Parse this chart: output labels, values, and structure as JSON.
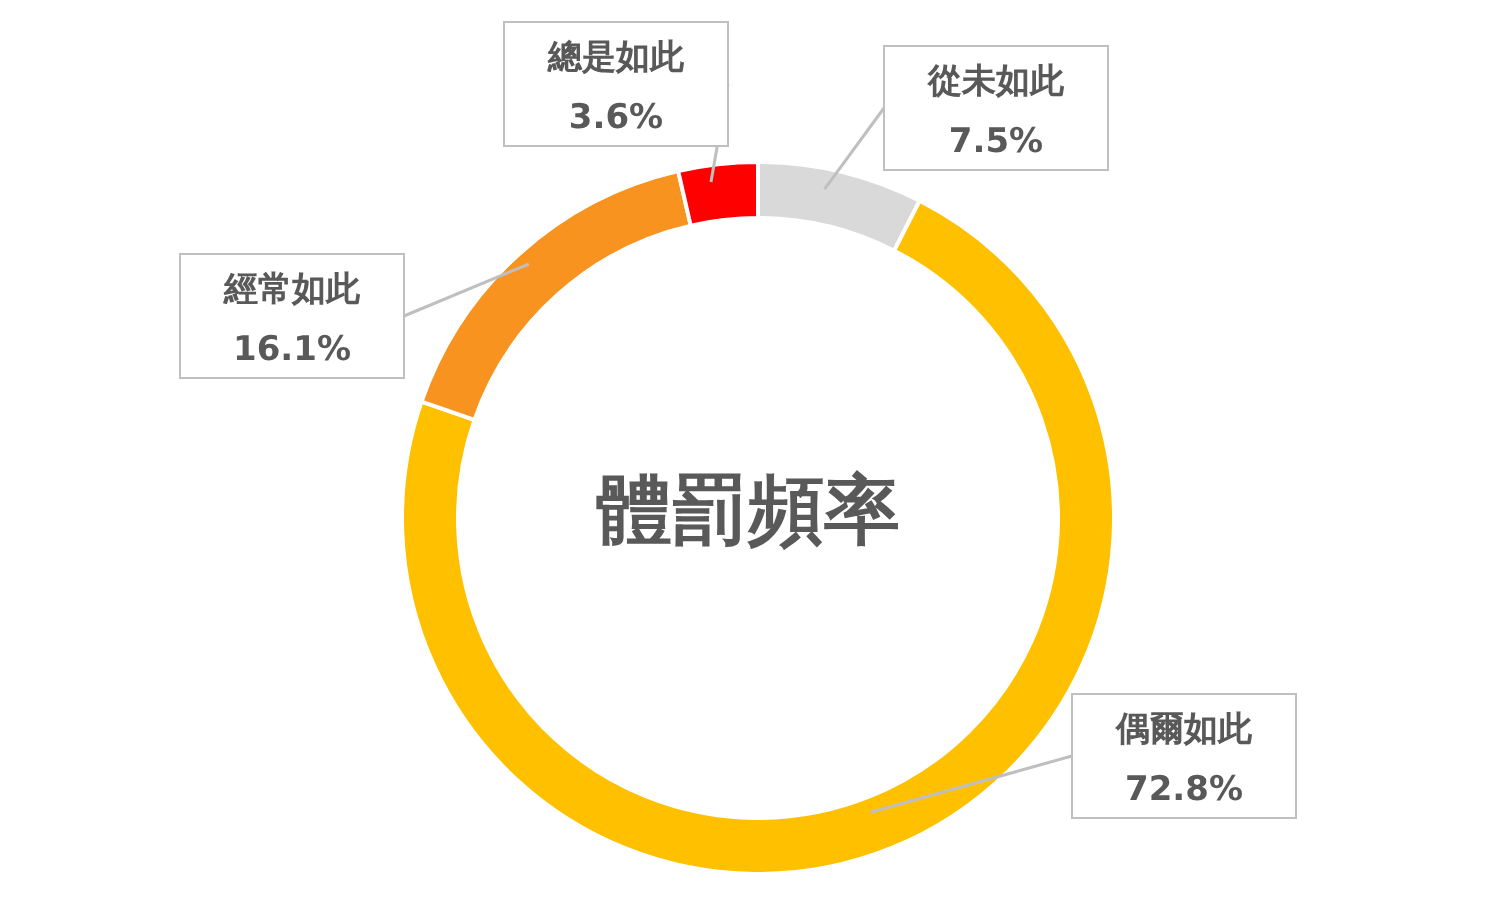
{
  "chart_data": {
    "type": "donut",
    "title": "體罰頻率",
    "categories": [
      "從未如此",
      "偶爾如此",
      "經常如此",
      "總是如此"
    ],
    "values": [
      7.5,
      72.8,
      16.1,
      3.6
    ],
    "colors": [
      "#d9d9d9",
      "#ffc000",
      "#f7931e",
      "#ff0000"
    ],
    "value_labels": [
      "7.5%",
      "72.8%",
      "16.1%",
      "3.6%"
    ]
  }
}
